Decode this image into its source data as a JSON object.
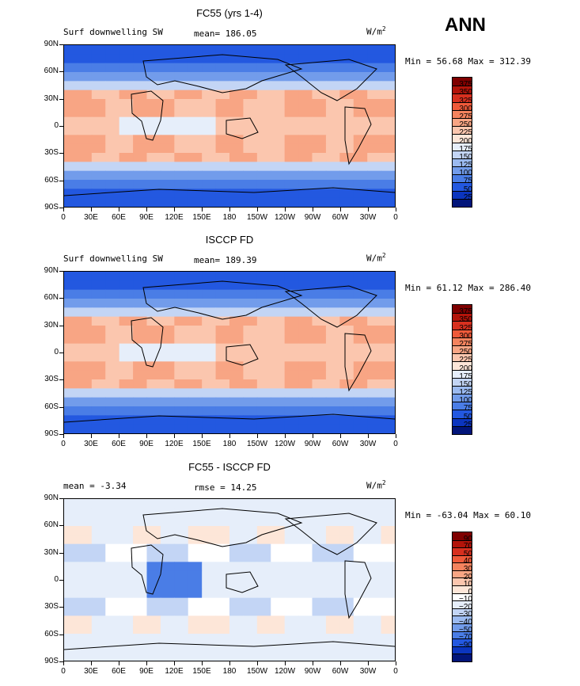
{
  "season_label": "ANN",
  "panels": [
    {
      "title": "FC55 (yrs 1-4)",
      "left_label": "Surf downwelling SW",
      "mean_text": "mean= 186.05",
      "rmse_text": "",
      "units": "W/m",
      "units_sup": "2",
      "minmax": "Min =  56.68 Max = 312.39",
      "colorbar_labels": [
        "375",
        "350",
        "325",
        "300",
        "275",
        "250",
        "225",
        "200",
        "175",
        "150",
        "125",
        "100",
        "75",
        "50",
        "25"
      ]
    },
    {
      "title": "ISCCP FD",
      "left_label": "Surf downwelling SW",
      "mean_text": "mean= 189.39",
      "rmse_text": "",
      "units": "W/m",
      "units_sup": "2",
      "minmax": "Min =  61.12 Max = 286.40",
      "colorbar_labels": [
        "375",
        "350",
        "325",
        "300",
        "275",
        "250",
        "225",
        "200",
        "175",
        "150",
        "125",
        "100",
        "75",
        "50",
        "25"
      ]
    },
    {
      "title": "FC55 - ISCCP FD",
      "left_label": "mean =  -3.34",
      "mean_text": "",
      "rmse_text": "rmse =  14.25",
      "units": "W/m",
      "units_sup": "2",
      "minmax": "Min = -63.04 Max =  60.10",
      "colorbar_labels": [
        "90",
        "70",
        "50",
        "40",
        "30",
        "20",
        "10",
        "0",
        "−10",
        "−20",
        "−30",
        "−40",
        "−50",
        "−70",
        "−90"
      ]
    }
  ],
  "axes": {
    "lat_ticks": [
      "90N",
      "60N",
      "30N",
      "0",
      "30S",
      "60S",
      "90S"
    ],
    "lon_ticks": [
      "0",
      "30E",
      "60E",
      "90E",
      "120E",
      "150E",
      "180",
      "150W",
      "120W",
      "90W",
      "60W",
      "30W",
      "0"
    ]
  },
  "colors": {
    "abs_scale": [
      "#7f0000",
      "#b3140a",
      "#d7301f",
      "#ef5a3a",
      "#f4835e",
      "#f8a584",
      "#fbc6ae",
      "#fde6d8",
      "#e6eefa",
      "#c3d5f5",
      "#9bbaf0",
      "#729ceb",
      "#4a7de6",
      "#2358e0",
      "#0b35bf",
      "#02157a"
    ],
    "diff_scale": [
      "#7f0000",
      "#b3140a",
      "#d7301f",
      "#ef5a3a",
      "#f4835e",
      "#f8a584",
      "#fbc6ae",
      "#fde6d8",
      "#ffffff",
      "#e6eefa",
      "#c3d5f5",
      "#9bbaf0",
      "#729ceb",
      "#4a7de6",
      "#2358e0",
      "#0b35bf",
      "#02157a"
    ]
  },
  "chart_data": [
    {
      "type": "heatmap",
      "title": "FC55 (yrs 1-4)",
      "variable": "Surf downwelling SW",
      "units": "W/m2",
      "mean": 186.05,
      "min": 56.68,
      "max": 312.39,
      "xlim": [
        0,
        360
      ],
      "ylim": [
        -90,
        90
      ],
      "colorbar_levels": [
        25,
        50,
        75,
        100,
        125,
        150,
        175,
        200,
        225,
        250,
        275,
        300,
        325,
        350,
        375
      ]
    },
    {
      "type": "heatmap",
      "title": "ISCCP FD",
      "variable": "Surf downwelling SW",
      "units": "W/m2",
      "mean": 189.39,
      "min": 61.12,
      "max": 286.4,
      "xlim": [
        0,
        360
      ],
      "ylim": [
        -90,
        90
      ],
      "colorbar_levels": [
        25,
        50,
        75,
        100,
        125,
        150,
        175,
        200,
        225,
        250,
        275,
        300,
        325,
        350,
        375
      ]
    },
    {
      "type": "heatmap",
      "title": "FC55 - ISCCP FD",
      "units": "W/m2",
      "mean": -3.34,
      "rmse": 14.25,
      "min": -63.04,
      "max": 60.1,
      "xlim": [
        0,
        360
      ],
      "ylim": [
        -90,
        90
      ],
      "colorbar_levels": [
        -90,
        -70,
        -50,
        -40,
        -30,
        -20,
        -10,
        0,
        10,
        20,
        30,
        40,
        50,
        70,
        90
      ]
    }
  ]
}
